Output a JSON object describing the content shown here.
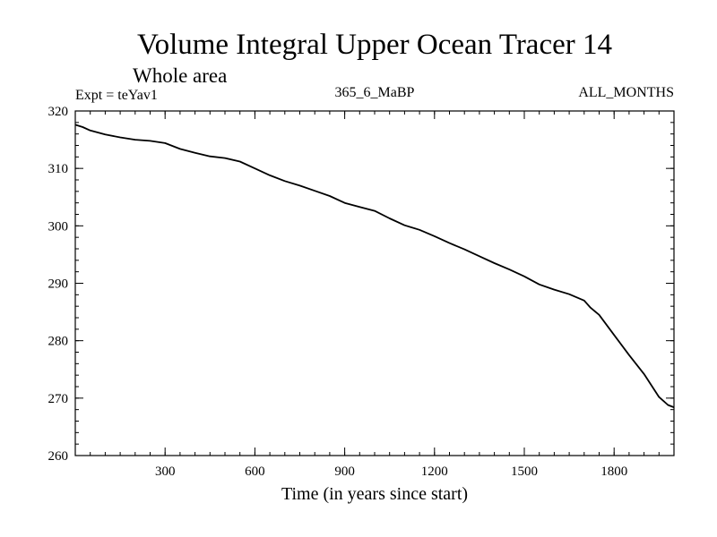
{
  "chart_data": {
    "type": "line",
    "title": "Volume Integral Upper Ocean Tracer 14",
    "subtitle": "Whole area",
    "experiment_label": "Expt = teYav1",
    "run_label": "365_6_MaBP",
    "months_label": "ALL_MONTHS",
    "xlabel": "Time (in years since start)",
    "ylabel": "",
    "xlim": [
      0,
      2000
    ],
    "ylim": [
      260,
      320
    ],
    "x_ticks": [
      300,
      600,
      900,
      1200,
      1500,
      1800
    ],
    "y_ticks": [
      260,
      270,
      280,
      290,
      300,
      310,
      320
    ],
    "x_minor_step": 50,
    "y_minor_step": 2,
    "grid": false,
    "series": [
      {
        "name": "Volume integral",
        "x": [
          0,
          25,
          50,
          100,
          150,
          200,
          250,
          300,
          350,
          400,
          450,
          500,
          550,
          600,
          650,
          700,
          750,
          800,
          850,
          900,
          950,
          1000,
          1050,
          1100,
          1150,
          1200,
          1250,
          1300,
          1350,
          1400,
          1450,
          1500,
          1550,
          1600,
          1650,
          1700,
          1720,
          1750,
          1800,
          1850,
          1900,
          1950,
          1980,
          2000
        ],
        "values": [
          317.6,
          317.2,
          316.6,
          315.9,
          315.4,
          315.0,
          314.8,
          314.4,
          313.4,
          312.7,
          312.1,
          311.8,
          311.2,
          310.0,
          308.8,
          307.8,
          307.0,
          306.1,
          305.2,
          304.0,
          303.3,
          302.6,
          301.3,
          300.1,
          299.3,
          298.2,
          297.0,
          295.9,
          294.7,
          293.5,
          292.4,
          291.2,
          289.8,
          288.9,
          288.1,
          287.0,
          285.8,
          284.5,
          281.0,
          277.5,
          274.2,
          270.2,
          268.8,
          268.4
        ]
      }
    ]
  }
}
